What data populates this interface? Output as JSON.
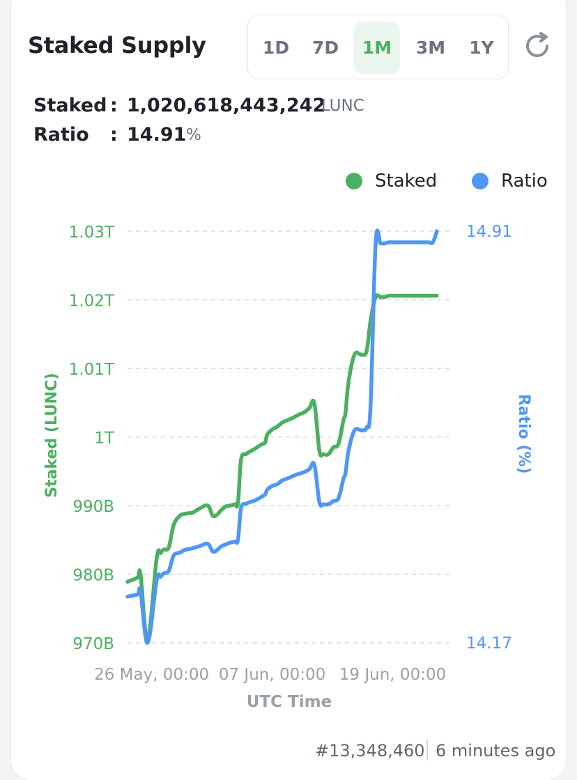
{
  "header": {
    "title": "Staked Supply"
  },
  "range_tabs": [
    {
      "label": "1D",
      "active": false
    },
    {
      "label": "7D",
      "active": false
    },
    {
      "label": "1M",
      "active": true
    },
    {
      "label": "3M",
      "active": false
    },
    {
      "label": "1Y",
      "active": false
    }
  ],
  "refresh_icon": "refresh-icon",
  "stats": {
    "staked": {
      "label": "Staked",
      "colon": ":",
      "value": "1,020,618,443,242",
      "unit": "LUNC"
    },
    "ratio": {
      "label": "Ratio",
      "colon": ":",
      "value": "14.91",
      "unit": "%"
    }
  },
  "legend": [
    {
      "name": "Staked",
      "color": "#4caf61"
    },
    {
      "name": "Ratio",
      "color": "#4f97f5"
    }
  ],
  "footer": {
    "block": "#13,348,460",
    "updated": "6 minutes ago"
  },
  "colors": {
    "staked": "#4caf61",
    "ratio": "#4f97f5",
    "grid": "#d6d9de",
    "xtick": "#9aa0a8"
  },
  "chart_data": {
    "type": "line",
    "x_ticks": [
      "26 May, 00:00",
      "07 Jun, 00:00",
      "19 Jun, 00:00"
    ],
    "xlabel": "UTC Time",
    "y_left": {
      "label": "Staked (LUNC)",
      "ticks": [
        "970B",
        "980B",
        "990B",
        "1T",
        "1.01T",
        "1.02T",
        "1.03T"
      ],
      "range": [
        970,
        1030
      ],
      "unit": "billion LUNC"
    },
    "y_right": {
      "label": "Ratio (%)",
      "ticks": [
        "14.17",
        "14.91"
      ],
      "range": [
        14.17,
        14.91
      ]
    },
    "x_range": [
      -2.4,
      30
    ],
    "grid": true,
    "legend_position": "top-right",
    "series": [
      {
        "name": "Staked",
        "axis": "left",
        "x": [
          -2.4,
          -1.4,
          -1.1,
          -0.4,
          0.5,
          0.9,
          1.2,
          1.7,
          2.2,
          2.8,
          3.3,
          4.1,
          4.8,
          5.6,
          6.1,
          6.6,
          6.9,
          7.4,
          7.8,
          8.3,
          8.6,
          8.9,
          9.4,
          9.8,
          10.3,
          10.8,
          11.3,
          11.5,
          12.0,
          12.5,
          13.0,
          13.6,
          14.2,
          14.7,
          15.2,
          15.7,
          16.2,
          16.7,
          17.1,
          17.6,
          18.1,
          18.6,
          19.1,
          19.3,
          19.6,
          20.2,
          20.9,
          21.4,
          21.8,
          22.3,
          22.8,
          23.2,
          23.6,
          24.1,
          24.6,
          25.0,
          25.4,
          26.0,
          26.5,
          27.0,
          27.6,
          28.0,
          28.4
        ],
        "y": [
          978.9,
          979.5,
          979.9,
          970.4,
          982.3,
          983.1,
          983.6,
          983.9,
          987.2,
          988.5,
          988.8,
          989.0,
          989.6,
          990.0,
          988.5,
          988.8,
          989.3,
          989.9,
          990.0,
          990.2,
          990.4,
          996.7,
          997.5,
          997.9,
          998.3,
          998.8,
          999.2,
          1000.3,
          1001.1,
          1001.5,
          1002.1,
          1002.5,
          1002.9,
          1003.3,
          1003.6,
          1004.2,
          1004.9,
          998.0,
          997.5,
          997.5,
          998.5,
          999.0,
          1002.5,
          1003.5,
          1008.0,
          1012.0,
          1012.0,
          1012.5,
          1017.0,
          1020.4,
          1020.4,
          1020.4,
          1020.6,
          1020.6,
          1020.6,
          1020.6,
          1020.6,
          1020.6,
          1020.6,
          1020.6,
          1020.6,
          1020.6,
          1020.6
        ]
      },
      {
        "name": "Ratio",
        "axis": "right",
        "x": [
          -2.4,
          -1.4,
          -1.1,
          -0.4,
          0.5,
          0.9,
          1.2,
          1.7,
          2.2,
          2.8,
          3.3,
          4.1,
          4.8,
          5.6,
          6.1,
          6.6,
          6.9,
          7.4,
          7.8,
          8.3,
          8.6,
          8.9,
          9.4,
          9.8,
          10.3,
          10.8,
          11.3,
          11.5,
          12.0,
          12.5,
          13.0,
          13.6,
          14.2,
          14.7,
          15.2,
          15.7,
          16.2,
          16.7,
          17.1,
          17.6,
          18.1,
          18.6,
          19.1,
          19.3,
          19.6,
          20.2,
          20.9,
          21.4,
          21.8,
          22.3,
          22.8,
          23.2,
          23.6,
          24.1,
          24.6,
          25.0,
          25.4,
          26.0,
          26.5,
          27.0,
          27.6,
          28.0,
          28.4
        ],
        "y": [
          14.253,
          14.257,
          14.262,
          14.17,
          14.282,
          14.289,
          14.295,
          14.299,
          14.327,
          14.332,
          14.337,
          14.34,
          14.344,
          14.348,
          14.334,
          14.338,
          14.343,
          14.347,
          14.35,
          14.352,
          14.355,
          14.412,
          14.42,
          14.423,
          14.426,
          14.431,
          14.437,
          14.445,
          14.452,
          14.455,
          14.462,
          14.466,
          14.471,
          14.474,
          14.477,
          14.482,
          14.49,
          14.423,
          14.419,
          14.419,
          14.425,
          14.43,
          14.465,
          14.475,
          14.515,
          14.552,
          14.552,
          14.557,
          14.597,
          14.888,
          14.888,
          14.888,
          14.89,
          14.89,
          14.89,
          14.89,
          14.89,
          14.89,
          14.89,
          14.89,
          14.89,
          14.89,
          14.91
        ]
      }
    ]
  }
}
